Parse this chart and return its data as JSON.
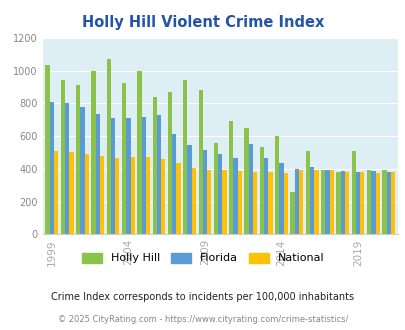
{
  "title": "Holly Hill Violent Crime Index",
  "subtitle": "Crime Index corresponds to incidents per 100,000 inhabitants",
  "footer": "© 2025 CityRating.com - https://www.cityrating.com/crime-statistics/",
  "years": [
    1999,
    2000,
    2001,
    2002,
    2003,
    2004,
    2005,
    2006,
    2007,
    2008,
    2009,
    2010,
    2011,
    2012,
    2013,
    2014,
    2015,
    2016,
    2017,
    2018,
    2019,
    2020,
    2021
  ],
  "holly_hill": [
    1035,
    940,
    910,
    1000,
    1070,
    925,
    1000,
    840,
    870,
    940,
    880,
    560,
    690,
    650,
    535,
    600,
    260,
    510,
    390,
    380,
    510,
    390,
    390
  ],
  "florida": [
    810,
    800,
    780,
    735,
    710,
    710,
    715,
    730,
    615,
    545,
    515,
    490,
    465,
    550,
    465,
    435,
    400,
    410,
    390,
    385,
    380,
    385,
    380
  ],
  "national": [
    510,
    500,
    490,
    480,
    465,
    470,
    470,
    460,
    435,
    405,
    395,
    390,
    385,
    380,
    380,
    375,
    390,
    395,
    395,
    380,
    380,
    375,
    380
  ],
  "holly_hill_color": "#8bc34a",
  "florida_color": "#5b9bd5",
  "national_color": "#ffc107",
  "fig_bg_color": "#ffffff",
  "plot_bg_color": "#ddeef4",
  "title_color": "#2255aa",
  "subtitle_color": "#222222",
  "footer_color": "#888888",
  "ylim": [
    0,
    1200
  ],
  "yticks": [
    0,
    200,
    400,
    600,
    800,
    1000,
    1200
  ],
  "xtick_labels": [
    "1999",
    "2004",
    "2009",
    "2014",
    "2019"
  ],
  "xtick_positions": [
    1999,
    2004,
    2009,
    2014,
    2019
  ],
  "bar_width": 0.28
}
